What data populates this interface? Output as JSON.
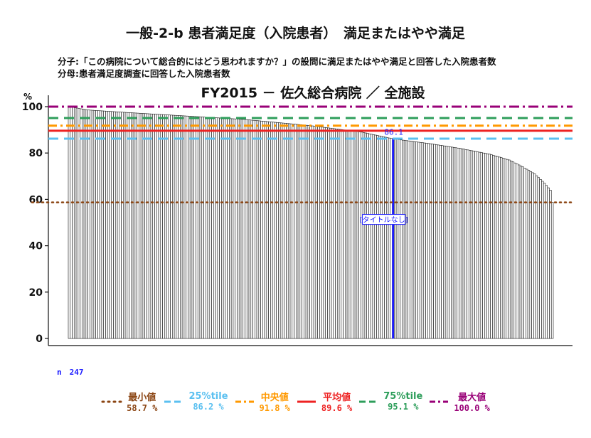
{
  "chart_data": {
    "type": "bar",
    "title": "一般-2-b 患者満足度（入院患者）　満足またはやや満足",
    "numerator_note": "分子:「この病院について総合的にはどう思われますか？」の設問に満足またはやや満足と回答した入院患者数",
    "denominator_note": "分母:患者満足度調査に回答した入院患者数",
    "subtitle": "FY2015 － 佐久総合病院 ／ 全施設",
    "ylabel": "%",
    "ylim": [
      0,
      100
    ],
    "yticks": [
      "0",
      "20",
      "40",
      "60",
      "80",
      "100"
    ],
    "n_label": "n　247",
    "n": 247,
    "highlight_value": 86.1,
    "highlight_label": "86.1",
    "highlight_rank": 166,
    "annotation": "[タイトルなし]",
    "value_profile": [
      {
        "rank": 1,
        "value": 100.0
      },
      {
        "rank": 10,
        "value": 98.6
      },
      {
        "rank": 30,
        "value": 97.5
      },
      {
        "rank": 60,
        "value": 96.0
      },
      {
        "rank": 90,
        "value": 94.5
      },
      {
        "rank": 124,
        "value": 91.8
      },
      {
        "rank": 150,
        "value": 89.0
      },
      {
        "rank": 166,
        "value": 86.1
      },
      {
        "rank": 185,
        "value": 84.0
      },
      {
        "rank": 200,
        "value": 82.0
      },
      {
        "rank": 215,
        "value": 79.5
      },
      {
        "rank": 225,
        "value": 77.0
      },
      {
        "rank": 232,
        "value": 74.0
      },
      {
        "rank": 238,
        "value": 71.0
      },
      {
        "rank": 243,
        "value": 67.0
      },
      {
        "rank": 246,
        "value": 64.0
      },
      {
        "rank": 247,
        "value": 58.7
      }
    ],
    "reference_lines": [
      {
        "key": "min",
        "name": "最小値",
        "value": 58.7,
        "label": "58.7 %",
        "color": "#8B4513",
        "dash": "2 5",
        "width": 2.5
      },
      {
        "key": "p25",
        "name": "25%tile",
        "value": 86.2,
        "label": "86.2 %",
        "color": "#5BC0F0",
        "dash": "14 8",
        "width": 3
      },
      {
        "key": "median",
        "name": "中央値",
        "value": 91.8,
        "label": "91.8 %",
        "color": "#FF9900",
        "dash": "12 5 3 5",
        "width": 3
      },
      {
        "key": "mean",
        "name": "平均値",
        "value": 89.6,
        "label": "89.6 %",
        "color": "#EE2222",
        "dash": "",
        "width": 3
      },
      {
        "key": "p75",
        "name": "75%tile",
        "value": 95.1,
        "label": "95.1 %",
        "color": "#2E9E5B",
        "dash": "14 8",
        "width": 3
      },
      {
        "key": "max",
        "name": "最大値",
        "value": 100.0,
        "label": "100.0 %",
        "color": "#990077",
        "dash": "14 5 3 5",
        "width": 3
      }
    ]
  }
}
